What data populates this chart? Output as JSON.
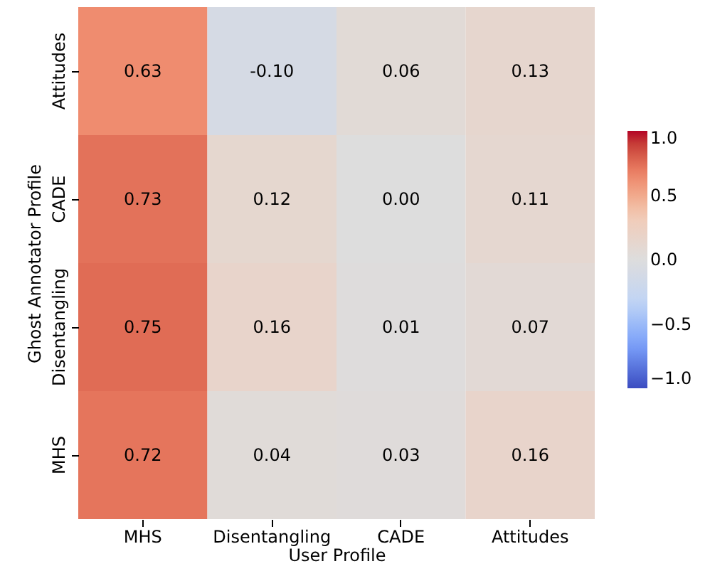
{
  "chart_data": {
    "type": "heatmap",
    "xlabel": "User Profile",
    "ylabel": "Ghost Annotator Profile",
    "categories": [
      "MHS",
      "Disentangling",
      "CADE",
      "Attitudes"
    ],
    "y_categories": [
      "Attitudes",
      "CADE",
      "Disentangling",
      "MHS"
    ],
    "cells": [
      [
        0.63,
        -0.1,
        0.06,
        0.13
      ],
      [
        0.73,
        0.12,
        0.0,
        0.11
      ],
      [
        0.75,
        0.16,
        0.01,
        0.07
      ],
      [
        0.72,
        0.04,
        0.03,
        0.16
      ]
    ],
    "cell_labels": [
      [
        "0.63",
        "-0.10",
        "0.06",
        "0.13"
      ],
      [
        "0.73",
        "0.12",
        "0.00",
        "0.11"
      ],
      [
        "0.75",
        "0.16",
        "0.01",
        "0.07"
      ],
      [
        "0.72",
        "0.04",
        "0.03",
        "0.16"
      ]
    ],
    "clim": [
      -1,
      1
    ],
    "cticks": [
      {
        "value": -1,
        "label": "−1.0"
      },
      {
        "value": -0.5,
        "label": "−0.5"
      },
      {
        "value": 0,
        "label": "0.0"
      },
      {
        "value": 0.5,
        "label": "0.5"
      },
      {
        "value": 1,
        "label": "1.0"
      }
    ]
  }
}
